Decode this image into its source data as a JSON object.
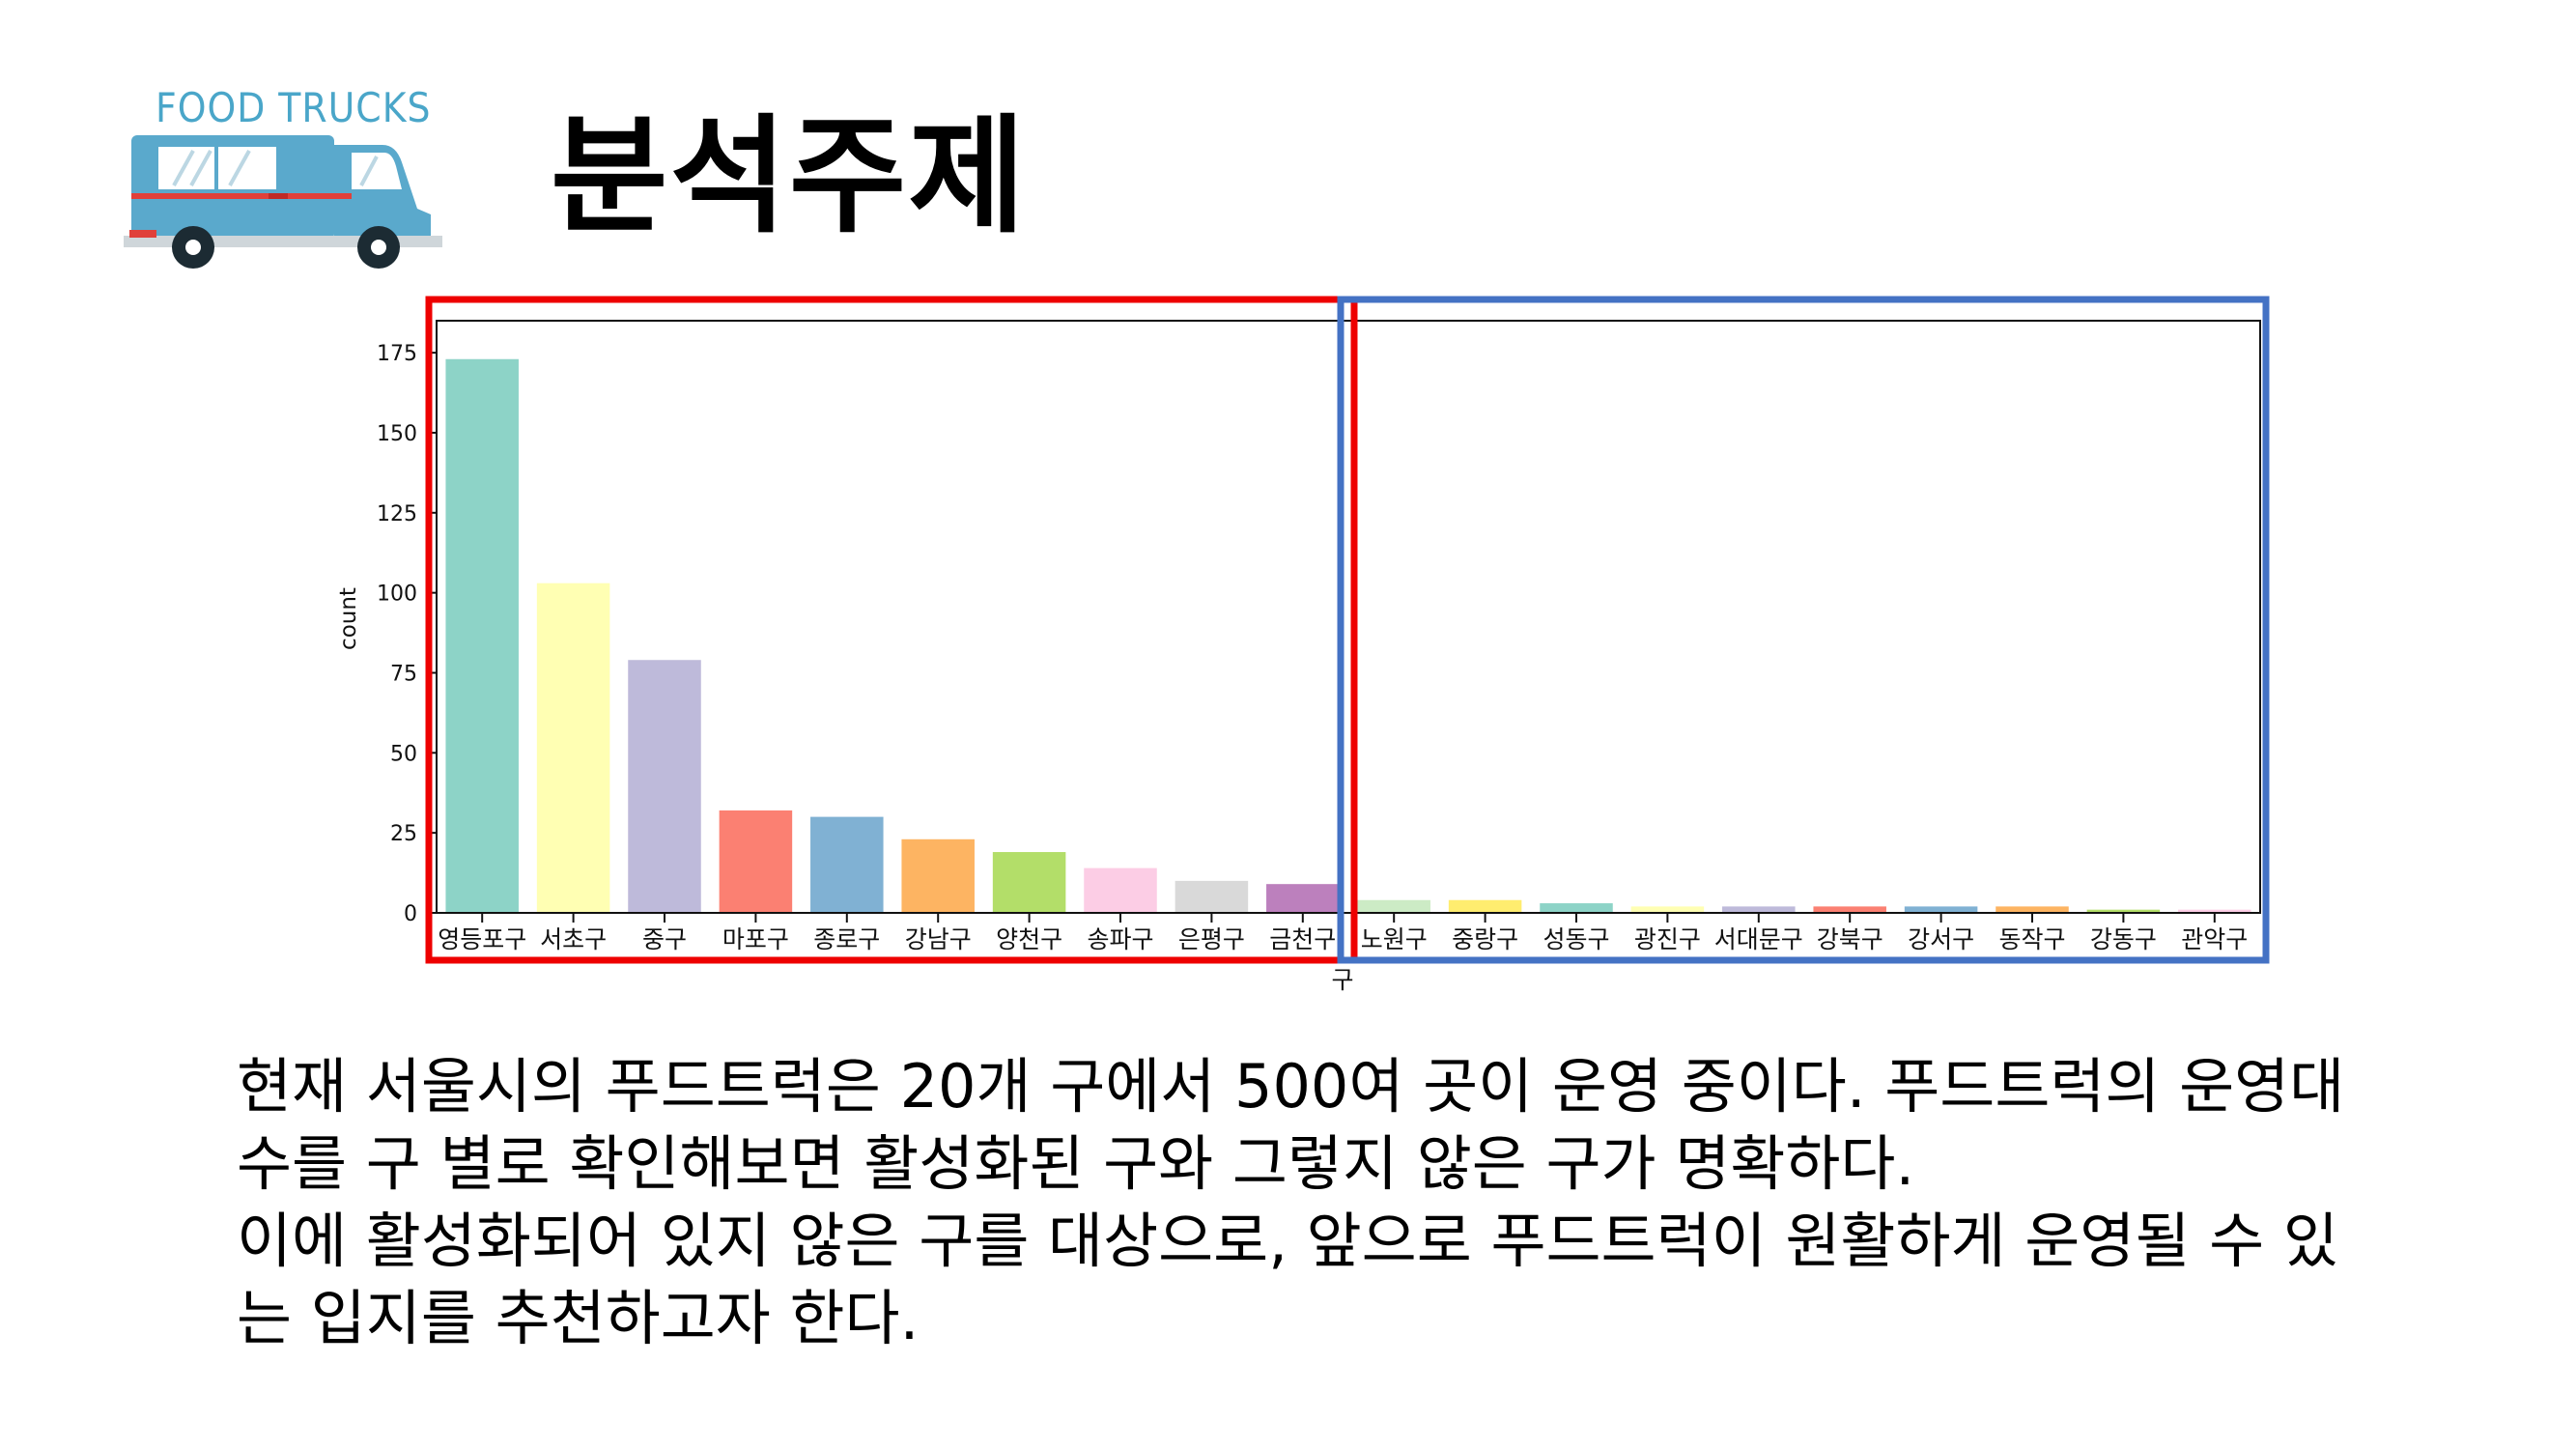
{
  "slide": {
    "logo_text": "FOOD TRUCKS",
    "title": "분석주제",
    "body_lines": [
      "현재 서울시의 푸드트럭은 20개 구에서 500여 곳이 운영 중이다. 푸드트럭의 운영대",
      "수를 구 별로 확인해보면 활성화된 구와 그렇지 않은 구가 명확하다.",
      "이에 활성화되어 있지 않은 구를 대상으로, 앞으로 푸드트럭이 원활하게 운영될 수 있",
      "는 입지를 추천하고자 한다."
    ]
  },
  "colors": {
    "logo_blue": "#5aa9cc",
    "active_box": "#ee0000",
    "inactive_box": "#4472c4"
  },
  "chart_data": {
    "type": "bar",
    "xlabel": "구",
    "ylabel": "count",
    "ylim": [
      0,
      185
    ],
    "yticks": [
      0,
      25,
      50,
      75,
      100,
      125,
      150,
      175
    ],
    "categories": [
      "영등포구",
      "서초구",
      "중구",
      "마포구",
      "종로구",
      "강남구",
      "양천구",
      "송파구",
      "은평구",
      "금천구",
      "노원구",
      "중랑구",
      "성동구",
      "광진구",
      "서대문구",
      "강북구",
      "강서구",
      "동작구",
      "강동구",
      "관악구"
    ],
    "values": [
      173,
      103,
      79,
      32,
      30,
      23,
      19,
      14,
      10,
      9,
      4,
      4,
      3,
      2,
      2,
      2,
      2,
      2,
      1,
      1
    ],
    "bar_colors": [
      "#8dd3c7",
      "#ffffb3",
      "#bebada",
      "#fb8072",
      "#80b1d3",
      "#fdb462",
      "#b3de69",
      "#fccde5",
      "#d9d9d9",
      "#bc80bd",
      "#ccebc5",
      "#ffed6f",
      "#8dd3c7",
      "#ffffb3",
      "#bebada",
      "#fb8072",
      "#80b1d3",
      "#fdb462",
      "#b3de69",
      "#fccde5"
    ],
    "grid": false,
    "highlight_groups": [
      {
        "group": "active",
        "from_index": 0,
        "to_index": 9
      },
      {
        "group": "inactive",
        "from_index": 10,
        "to_index": 19
      }
    ]
  }
}
